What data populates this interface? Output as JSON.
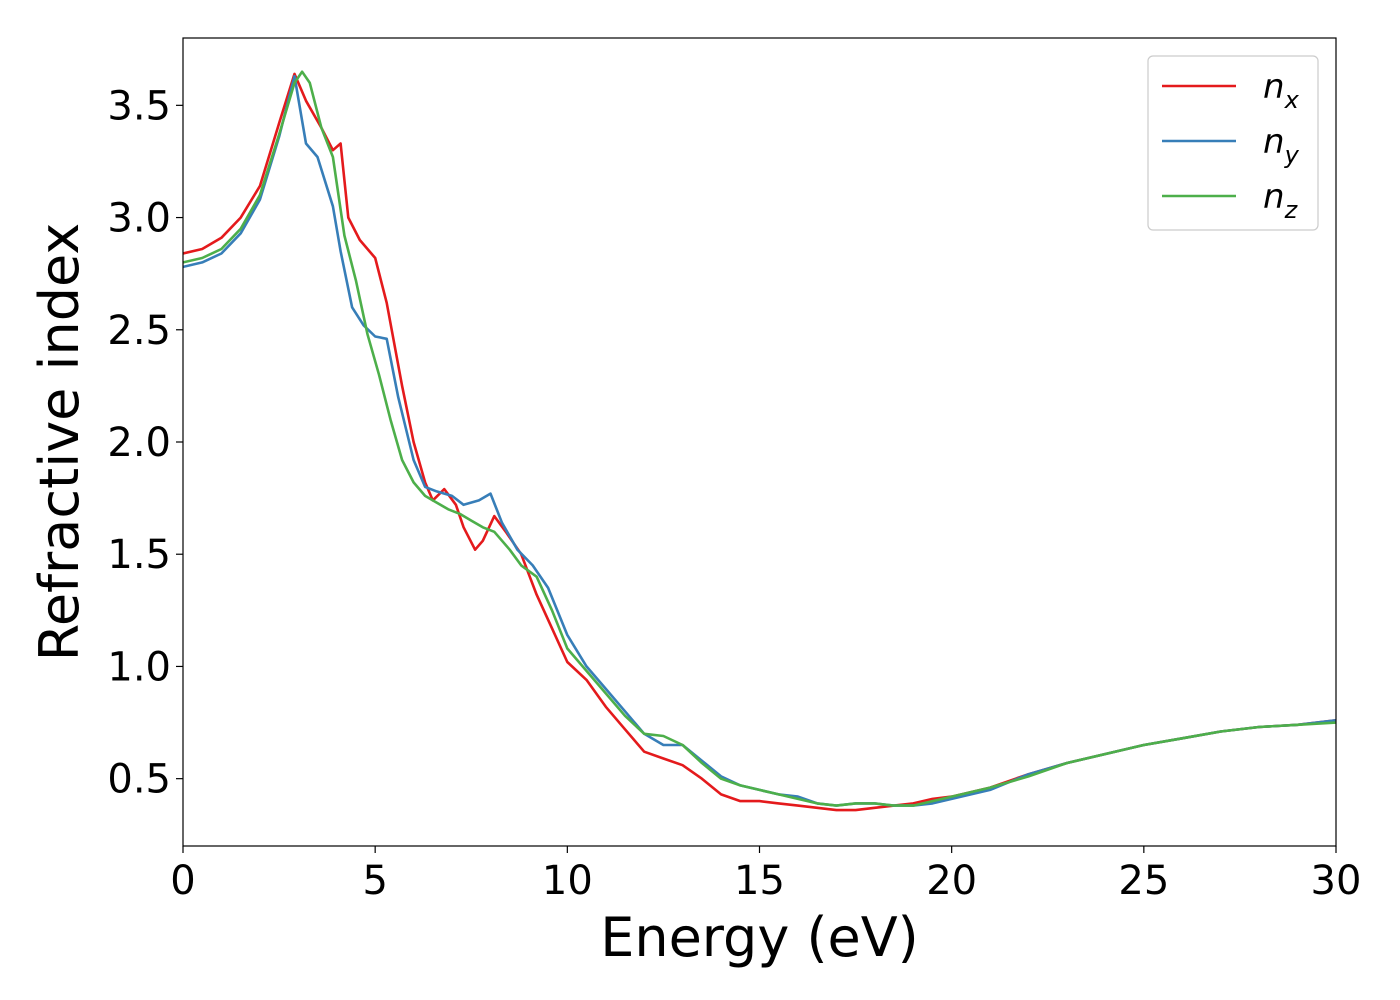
{
  "chart_data": {
    "type": "line",
    "xlabel": "Energy (eV)",
    "ylabel": "Refractive index",
    "xlim": [
      0,
      30
    ],
    "ylim": [
      0.2,
      3.8
    ],
    "xticks": [
      0,
      5,
      10,
      15,
      20,
      25,
      30
    ],
    "xtick_labels": [
      "0",
      "5",
      "10",
      "15",
      "20",
      "25",
      "30"
    ],
    "yticks": [
      0.5,
      1.0,
      1.5,
      2.0,
      2.5,
      3.0,
      3.5
    ],
    "ytick_labels": [
      "0.5",
      "1.0",
      "1.5",
      "2.0",
      "2.5",
      "3.0",
      "3.5"
    ],
    "grid": false,
    "legend_position": "top-right",
    "series": [
      {
        "name": "n_x",
        "label_base": "n",
        "label_sub": "x",
        "color": "#e41a1c",
        "x": [
          0,
          0.5,
          1,
          1.5,
          2,
          2.5,
          2.9,
          3.2,
          3.6,
          3.9,
          4.1,
          4.3,
          4.6,
          5,
          5.3,
          5.7,
          6,
          6.3,
          6.5,
          6.8,
          7.1,
          7.3,
          7.6,
          7.8,
          8.1,
          8.4,
          8.8,
          9.2,
          9.6,
          10,
          10.5,
          11,
          11.5,
          12,
          12.5,
          13,
          13.5,
          14,
          14.5,
          15,
          15.5,
          16,
          16.5,
          17,
          17.5,
          18,
          18.5,
          19,
          19.5,
          20,
          20.5,
          21,
          22,
          23,
          24,
          25,
          26,
          27,
          28,
          29,
          30
        ],
        "y": [
          2.84,
          2.86,
          2.91,
          3.0,
          3.14,
          3.42,
          3.64,
          3.52,
          3.4,
          3.3,
          3.33,
          3.0,
          2.9,
          2.82,
          2.62,
          2.25,
          2.0,
          1.82,
          1.74,
          1.79,
          1.72,
          1.62,
          1.52,
          1.56,
          1.67,
          1.6,
          1.5,
          1.32,
          1.17,
          1.02,
          0.94,
          0.82,
          0.72,
          0.62,
          0.59,
          0.56,
          0.5,
          0.43,
          0.4,
          0.4,
          0.39,
          0.38,
          0.37,
          0.36,
          0.36,
          0.37,
          0.38,
          0.39,
          0.41,
          0.42,
          0.44,
          0.46,
          0.52,
          0.57,
          0.61,
          0.65,
          0.68,
          0.71,
          0.73,
          0.74,
          0.76
        ]
      },
      {
        "name": "n_y",
        "label_base": "n",
        "label_sub": "y",
        "color": "#377eb8",
        "x": [
          0,
          0.5,
          1,
          1.5,
          2,
          2.5,
          2.9,
          3.2,
          3.5,
          3.9,
          4.1,
          4.4,
          4.7,
          5,
          5.3,
          5.6,
          6,
          6.3,
          6.6,
          7,
          7.3,
          7.7,
          8,
          8.3,
          8.7,
          9.1,
          9.5,
          10,
          10.5,
          11,
          11.5,
          12,
          12.5,
          13,
          13.5,
          14,
          14.5,
          15,
          15.5,
          16,
          16.5,
          17,
          17.5,
          18,
          18.5,
          19,
          19.5,
          20,
          20.5,
          21,
          22,
          23,
          24,
          25,
          26,
          27,
          28,
          29,
          30
        ],
        "y": [
          2.78,
          2.8,
          2.84,
          2.93,
          3.08,
          3.36,
          3.63,
          3.33,
          3.27,
          3.05,
          2.85,
          2.6,
          2.52,
          2.47,
          2.46,
          2.2,
          1.92,
          1.8,
          1.78,
          1.76,
          1.72,
          1.74,
          1.77,
          1.64,
          1.52,
          1.45,
          1.35,
          1.14,
          1.0,
          0.9,
          0.8,
          0.7,
          0.65,
          0.65,
          0.58,
          0.51,
          0.47,
          0.45,
          0.43,
          0.42,
          0.39,
          0.38,
          0.39,
          0.39,
          0.38,
          0.38,
          0.39,
          0.41,
          0.43,
          0.45,
          0.52,
          0.57,
          0.61,
          0.65,
          0.68,
          0.71,
          0.73,
          0.74,
          0.76
        ]
      },
      {
        "name": "n_z",
        "label_base": "n",
        "label_sub": "z",
        "color": "#4daf4a",
        "x": [
          0,
          0.5,
          1,
          1.5,
          2,
          2.5,
          2.9,
          3.1,
          3.3,
          3.6,
          3.9,
          4.2,
          4.5,
          4.8,
          5.1,
          5.4,
          5.7,
          6,
          6.3,
          6.6,
          6.9,
          7.2,
          7.5,
          7.8,
          8.1,
          8.5,
          8.8,
          9.2,
          9.6,
          10,
          10.5,
          11,
          11.5,
          12,
          12.5,
          13,
          13.5,
          14,
          14.5,
          15,
          15.5,
          16,
          16.5,
          17,
          17.5,
          18,
          18.5,
          19,
          19.5,
          20,
          20.5,
          21,
          22,
          23,
          24,
          25,
          26,
          27,
          28,
          29,
          30
        ],
        "y": [
          2.8,
          2.82,
          2.86,
          2.95,
          3.1,
          3.37,
          3.6,
          3.65,
          3.6,
          3.4,
          3.27,
          2.92,
          2.72,
          2.48,
          2.3,
          2.1,
          1.92,
          1.82,
          1.76,
          1.73,
          1.7,
          1.68,
          1.65,
          1.62,
          1.6,
          1.52,
          1.45,
          1.4,
          1.25,
          1.08,
          0.98,
          0.88,
          0.78,
          0.7,
          0.69,
          0.65,
          0.57,
          0.5,
          0.47,
          0.45,
          0.43,
          0.41,
          0.39,
          0.38,
          0.39,
          0.39,
          0.38,
          0.38,
          0.4,
          0.42,
          0.44,
          0.46,
          0.51,
          0.57,
          0.61,
          0.65,
          0.68,
          0.71,
          0.73,
          0.74,
          0.75
        ]
      }
    ]
  }
}
